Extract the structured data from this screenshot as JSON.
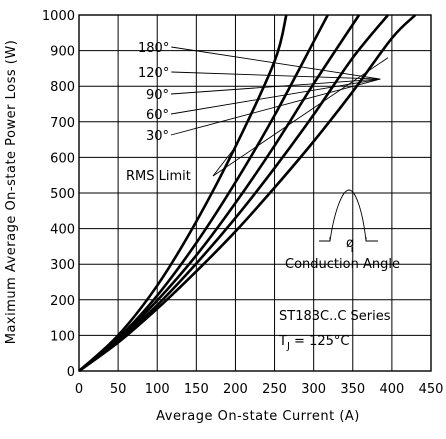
{
  "chart_data": {
    "type": "line",
    "title": "",
    "xlabel": "Average On-state Current (A)",
    "ylabel": "Maximum Average On-state Power Loss (W)",
    "xlim": [
      0,
      450
    ],
    "ylim": [
      0,
      1000
    ],
    "x_ticks": [
      0,
      50,
      100,
      150,
      200,
      250,
      300,
      350,
      400,
      450
    ],
    "y_ticks": [
      0,
      100,
      200,
      300,
      400,
      500,
      600,
      700,
      800,
      900,
      1000
    ],
    "grid": true,
    "series": [
      {
        "name": "180°",
        "x": [
          0,
          50,
          100,
          150,
          200,
          250,
          300,
          350,
          400,
          430
        ],
        "y": [
          0,
          80,
          175,
          280,
          392,
          515,
          645,
          785,
          935,
          1000
        ]
      },
      {
        "name": "120°",
        "x": [
          0,
          50,
          100,
          150,
          200,
          250,
          300,
          350,
          395
        ],
        "y": [
          0,
          84,
          185,
          302,
          430,
          570,
          720,
          880,
          1000
        ]
      },
      {
        "name": "90°",
        "x": [
          0,
          50,
          100,
          150,
          200,
          250,
          300,
          358
        ],
        "y": [
          0,
          88,
          198,
          325,
          472,
          633,
          807,
          1000
        ]
      },
      {
        "name": "60°",
        "x": [
          0,
          50,
          100,
          150,
          200,
          250,
          300,
          318
        ],
        "y": [
          0,
          92,
          212,
          360,
          530,
          718,
          925,
          1000
        ]
      },
      {
        "name": "30°",
        "x": [
          0,
          50,
          100,
          150,
          200,
          250,
          265
        ],
        "y": [
          0,
          100,
          240,
          420,
          630,
          870,
          1000
        ]
      }
    ],
    "rms_limit": {
      "label": "RMS Limit",
      "x": 212,
      "y": 550
    },
    "annotations": {
      "conduction": "Conduction Angle",
      "phi": "ø",
      "series_name": "ST183C..C Series",
      "tj_main": "T",
      "tj_sub": "J",
      "tj_value": " = 125°C"
    }
  }
}
